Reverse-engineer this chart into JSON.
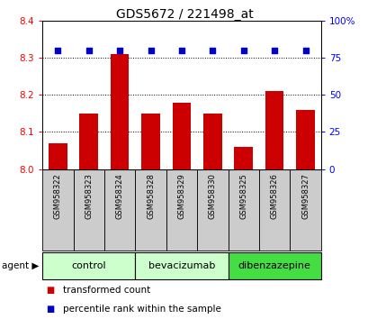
{
  "title": "GDS5672 / 221498_at",
  "samples": [
    "GSM958322",
    "GSM958323",
    "GSM958324",
    "GSM958328",
    "GSM958329",
    "GSM958330",
    "GSM958325",
    "GSM958326",
    "GSM958327"
  ],
  "bar_values": [
    8.07,
    8.15,
    8.31,
    8.15,
    8.18,
    8.15,
    8.06,
    8.21,
    8.16
  ],
  "percentile_values": [
    80,
    80,
    80,
    80,
    80,
    80,
    80,
    80,
    80
  ],
  "ylim_left": [
    8.0,
    8.4
  ],
  "ylim_right": [
    0,
    100
  ],
  "yticks_left": [
    8.0,
    8.1,
    8.2,
    8.3,
    8.4
  ],
  "yticks_right": [
    0,
    25,
    50,
    75,
    100
  ],
  "ytick_labels_right": [
    "0",
    "25",
    "50",
    "75",
    "100%"
  ],
  "bar_color": "#cc0000",
  "scatter_color": "#0000cc",
  "groups": [
    {
      "label": "control",
      "indices": [
        0,
        1,
        2
      ],
      "color": "#ccffcc"
    },
    {
      "label": "bevacizumab",
      "indices": [
        3,
        4,
        5
      ],
      "color": "#ccffcc"
    },
    {
      "label": "dibenzazepine",
      "indices": [
        6,
        7,
        8
      ],
      "color": "#44dd44"
    }
  ],
  "agent_label": "agent",
  "legend_bar_label": "transformed count",
  "legend_scatter_label": "percentile rank within the sample",
  "title_fontsize": 10,
  "tick_fontsize": 7.5,
  "sample_fontsize": 6.0,
  "group_fontsize": 8,
  "legend_fontsize": 7.5
}
